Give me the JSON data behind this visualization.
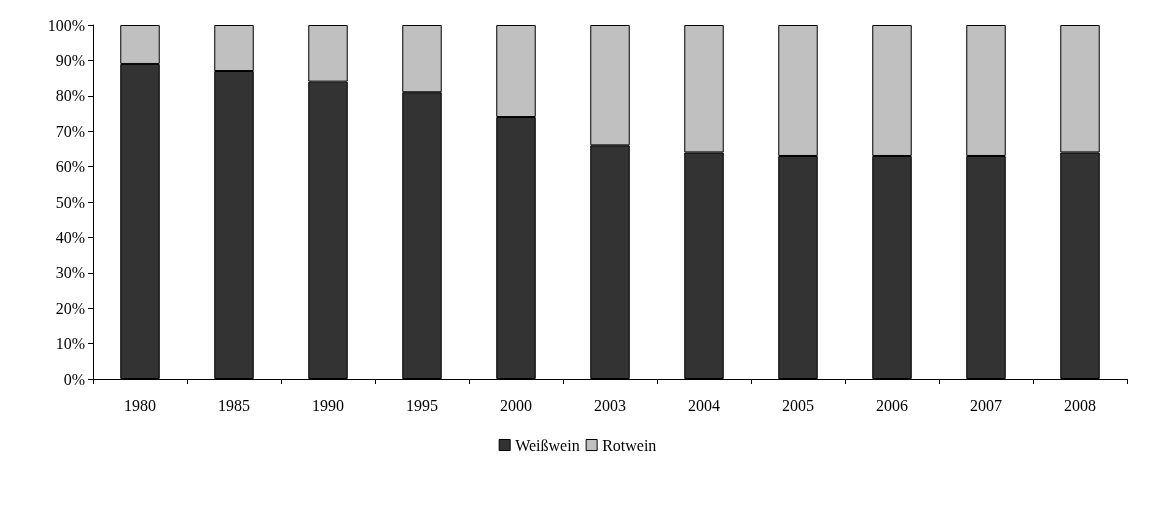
{
  "chart_data": {
    "type": "bar",
    "stacked": true,
    "categories": [
      "1980",
      "1985",
      "1990",
      "1995",
      "2000",
      "2003",
      "2004",
      "2005",
      "2006",
      "2007",
      "2008"
    ],
    "series": [
      {
        "name": "Weißwein",
        "color": "#333333",
        "values": [
          89,
          87,
          84,
          81,
          74,
          66,
          64,
          63,
          63,
          63,
          64
        ]
      },
      {
        "name": "Rotwein",
        "color": "#c0c0c0",
        "values": [
          11,
          13,
          16,
          19,
          26,
          34,
          36,
          37,
          37,
          37,
          36
        ]
      }
    ],
    "ylim": [
      0,
      100
    ],
    "yticks": [
      {
        "value": 0,
        "label": "0%"
      },
      {
        "value": 10,
        "label": "10%"
      },
      {
        "value": 20,
        "label": "20%"
      },
      {
        "value": 30,
        "label": "30%"
      },
      {
        "value": 40,
        "label": "40%"
      },
      {
        "value": 50,
        "label": "50%"
      },
      {
        "value": 60,
        "label": "60%"
      },
      {
        "value": 70,
        "label": "70%"
      },
      {
        "value": 80,
        "label": "80%"
      },
      {
        "value": 90,
        "label": "90%"
      },
      {
        "value": 100,
        "label": "100%"
      }
    ],
    "grid": false,
    "legend": "bottom"
  }
}
